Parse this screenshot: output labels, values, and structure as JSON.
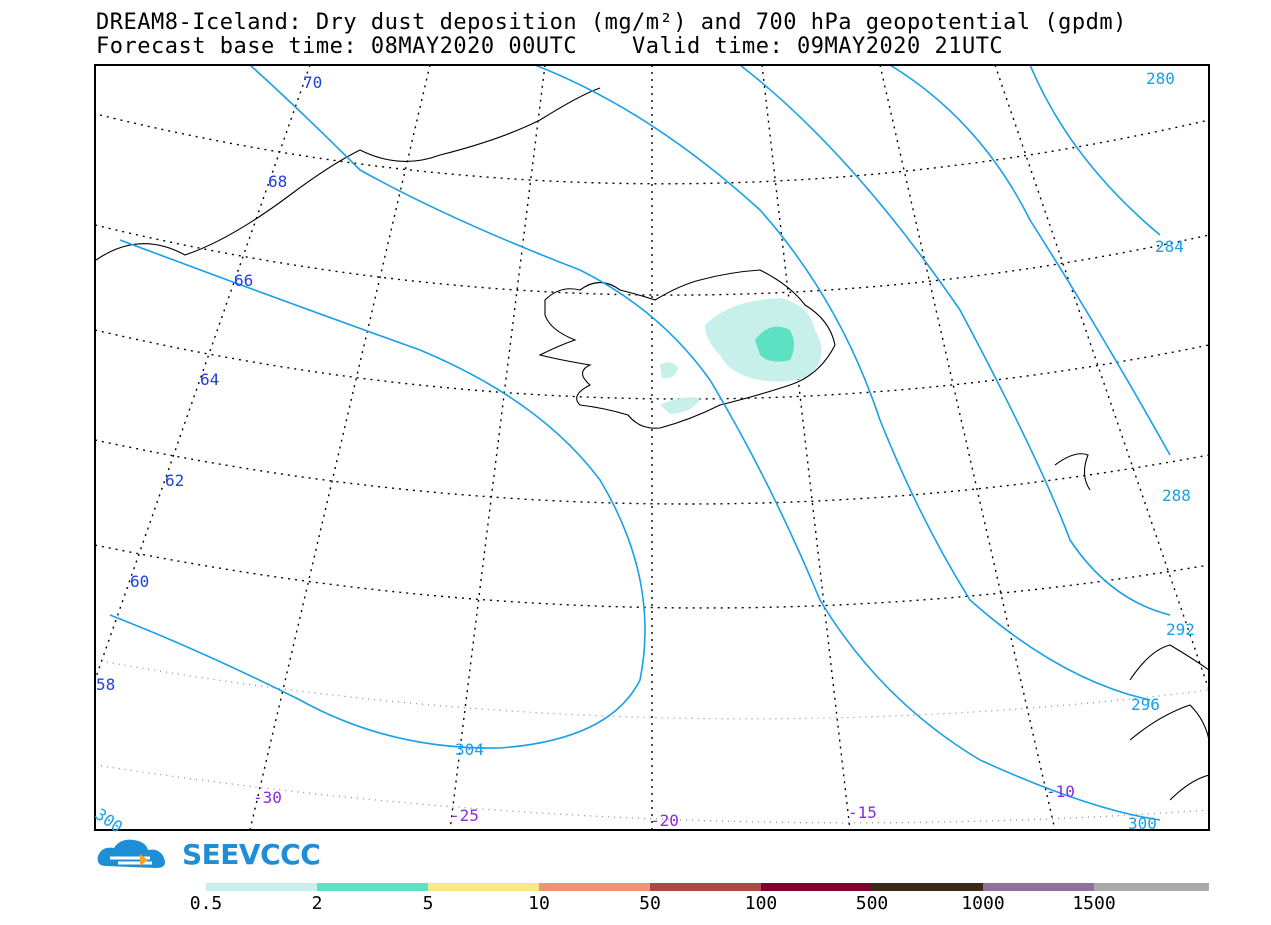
{
  "title_line1": "DREAM8-Iceland: Dry dust deposition (mg/m²) and 700 hPa geopotential (gpdm)",
  "title_line2": "Forecast base time: 08MAY2020 00UTC    Valid time: 09MAY2020 21UTC",
  "logo_text": "SEEVCCC",
  "colors": {
    "contour": "#1aa0e8",
    "lat_label": "#1f3fe0",
    "lon_label": "#8a2be2",
    "coast": "#000000"
  },
  "latitude_labels": [
    "70",
    "68",
    "66",
    "64",
    "62",
    "60",
    "58"
  ],
  "longitude_labels": [
    "-30",
    "-25",
    "-20",
    "-15",
    "-10"
  ],
  "contour_labels": [
    "280",
    "284",
    "288",
    "292",
    "296",
    "300",
    "304",
    "300"
  ],
  "colorbar": {
    "colors": [
      "#c8f0ea",
      "#5ee0c2",
      "#fbe889",
      "#ee9475",
      "#a84a45",
      "#800030",
      "#3a2a1a",
      "#93709b",
      "#aaaaaa"
    ],
    "labels": [
      "0.5",
      "2",
      "5",
      "10",
      "50",
      "100",
      "500",
      "1000",
      "1500"
    ]
  }
}
